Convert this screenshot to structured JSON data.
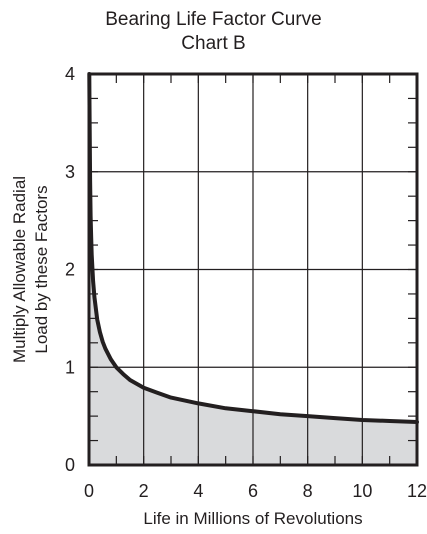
{
  "chart_data": {
    "type": "area",
    "title": "Bearing Life Factor Curve",
    "subtitle": "Chart B",
    "xlabel": "Life in Millions of Revolutions",
    "ylabel": [
      "Multiply Allowable Radial",
      "Load by these Factors"
    ],
    "xlim": [
      0,
      12
    ],
    "ylim": [
      0,
      4
    ],
    "xticks": [
      0,
      2,
      4,
      6,
      8,
      10,
      12
    ],
    "yticks": [
      0,
      1,
      2,
      3,
      4
    ],
    "grid": true,
    "fill_color": "#d9dadc",
    "line_color": "#231f20",
    "series": [
      {
        "x": [
          0.02,
          0.04,
          0.06,
          0.08,
          0.1,
          0.15,
          0.2,
          0.3,
          0.4,
          0.5,
          0.6,
          0.8,
          1,
          1.25,
          1.5,
          2,
          2.5,
          3,
          4,
          5,
          6,
          7,
          8,
          9,
          10,
          11,
          12
        ],
        "y": [
          3.68,
          2.92,
          2.55,
          2.32,
          2.15,
          1.88,
          1.71,
          1.49,
          1.36,
          1.26,
          1.19,
          1.08,
          1.0,
          0.93,
          0.87,
          0.79,
          0.74,
          0.69,
          0.63,
          0.58,
          0.55,
          0.52,
          0.5,
          0.48,
          0.46,
          0.45,
          0.44
        ]
      }
    ]
  }
}
